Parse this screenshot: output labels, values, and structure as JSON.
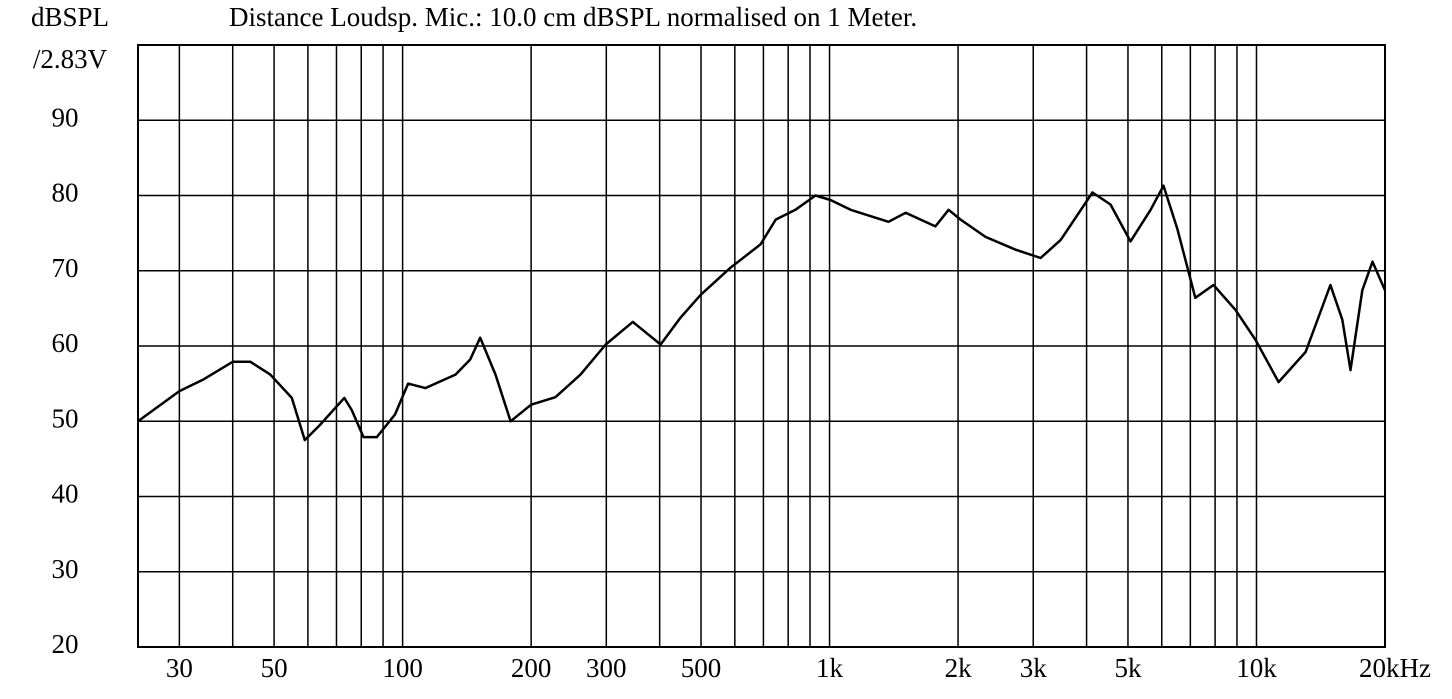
{
  "chart_data": {
    "type": "line",
    "title": "Distance Loudsp. Mic.:  10.0 cm dBSPL normalised on 1 Meter.",
    "ylabel": [
      "dBSPL",
      "/2.83V"
    ],
    "log_x": true,
    "grid": true,
    "xlim": [
      24,
      20000
    ],
    "ylim": [
      20,
      100
    ],
    "xticks": [
      30,
      50,
      100,
      200,
      300,
      500,
      {
        "value": 1000,
        "label": "1k"
      },
      {
        "value": 2000,
        "label": "2k"
      },
      {
        "value": 3000,
        "label": "3k"
      },
      {
        "value": 5000,
        "label": "5k"
      },
      {
        "value": 10000,
        "label": "10k"
      },
      {
        "value": 20000,
        "label": "20kHz"
      }
    ],
    "minor_xticks": [
      40,
      60,
      70,
      80,
      90,
      400,
      600,
      700,
      800,
      900,
      4000,
      6000,
      7000,
      8000,
      9000
    ],
    "yticks": [
      20,
      30,
      40,
      50,
      60,
      70,
      80,
      90
    ],
    "x": [
      24,
      30,
      34,
      40,
      44,
      49,
      55,
      59,
      64,
      73,
      76,
      81,
      87,
      96,
      103,
      113,
      133,
      144,
      152,
      165,
      179,
      200,
      228,
      261,
      299,
      346,
      402,
      448,
      499,
      586,
      689,
      748,
      832,
      927,
      1005,
      1120,
      1374,
      1507,
      1770,
      1900,
      2028,
      2319,
      2727,
      3121,
      3478,
      4130,
      4550,
      5070,
      5650,
      6055,
      6530,
      7190,
      7930,
      8930,
      9950,
      11270,
      13030,
      14900,
      15890,
      16600,
      17700,
      18700,
      20000
    ],
    "series": [
      {
        "color": "#000000",
        "values": [
          50,
          54,
          55.5,
          57.9,
          57.9,
          56.2,
          53.1,
          47.5,
          49.5,
          53.1,
          51.5,
          47.9,
          47.9,
          50.9,
          55,
          54.4,
          56.2,
          58.2,
          61.1,
          56.2,
          50,
          52.2,
          53.2,
          56.2,
          60.2,
          63.2,
          60.2,
          63.8,
          66.8,
          70.4,
          73.5,
          76.8,
          78.1,
          80,
          79.4,
          78.1,
          76.5,
          77.7,
          75.9,
          78.1,
          76.8,
          74.5,
          72.8,
          71.7,
          74.1,
          80.4,
          78.8,
          73.9,
          78.1,
          81.3,
          75.5,
          66.4,
          68.1,
          64.8,
          60.8,
          55.2,
          59.2,
          68.1,
          63.5,
          56.8,
          67.4,
          71.2,
          67.4
        ]
      }
    ]
  }
}
